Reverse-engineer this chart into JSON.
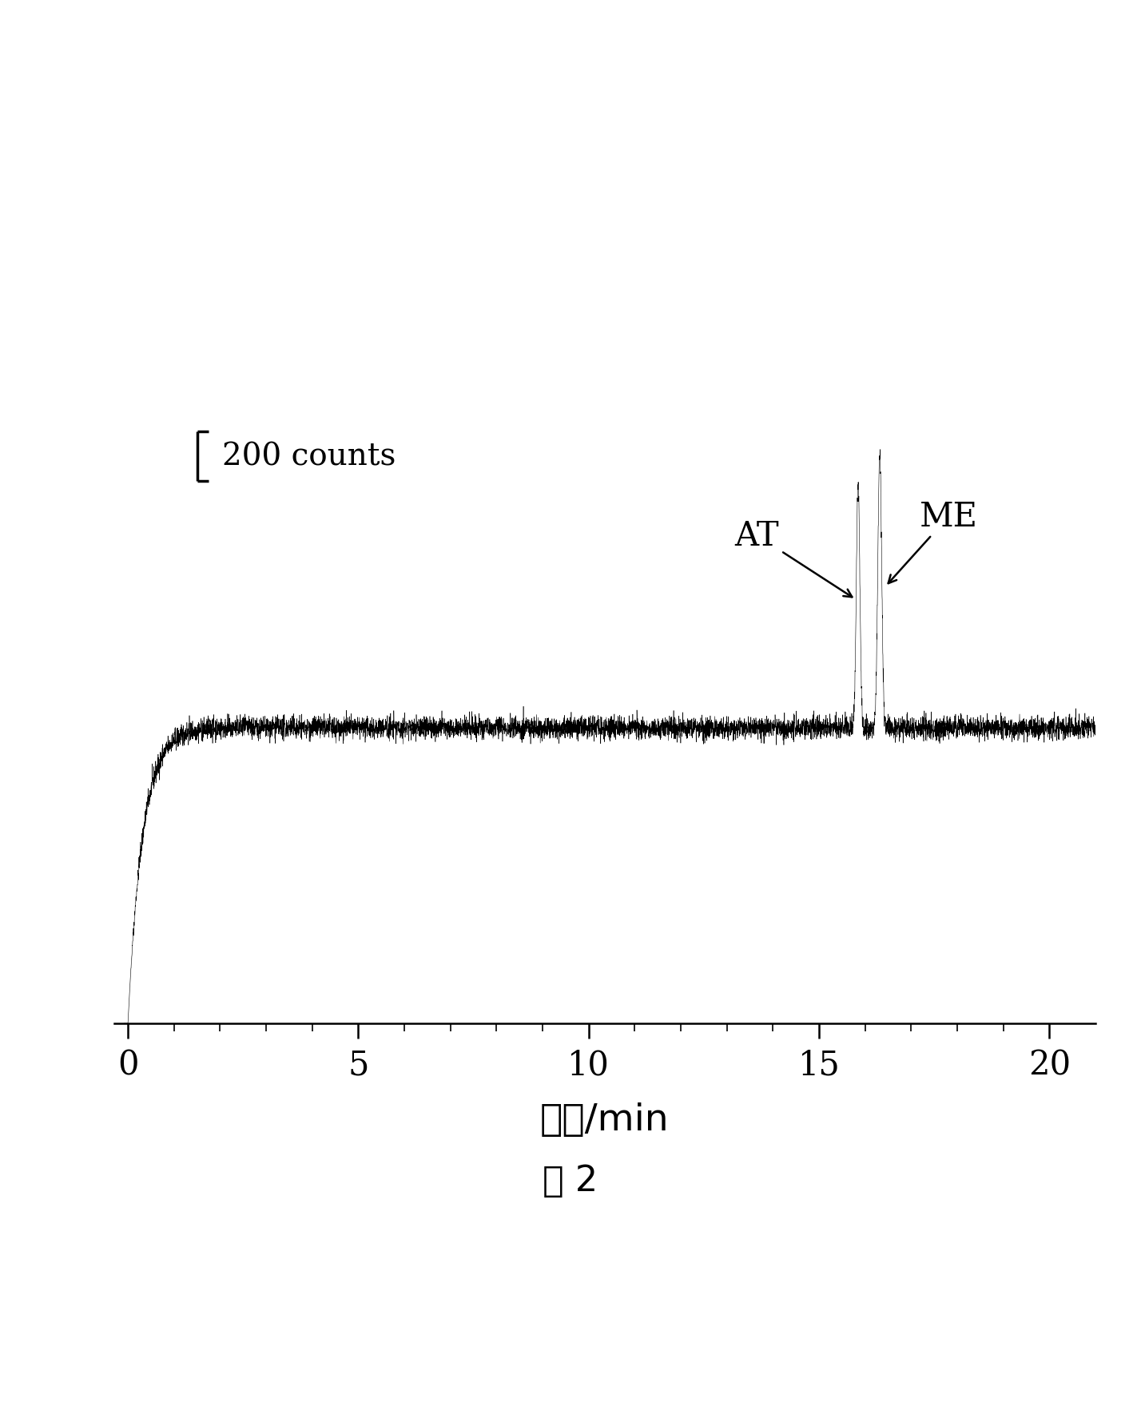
{
  "xlim": [
    -0.3,
    21
  ],
  "xticks": [
    0,
    5,
    10,
    15,
    20
  ],
  "xlabel": "时间/min",
  "scale_bar_label": "200 counts",
  "AT_peak_time": 15.85,
  "ME_peak_time": 16.32,
  "peak_height": 1000,
  "baseline_level": 0,
  "noise_amplitude": 22,
  "tau": 0.32,
  "figure_label": "图 2",
  "line_color": "#000000",
  "bg_color": "#ffffff",
  "ylim_bottom": -1200,
  "ylim_top": 1800,
  "scale_bar_x": 1.2,
  "scale_bar_y_bottom": 900,
  "scale_bar_y_top": 1100,
  "scale_bar_height": 200
}
